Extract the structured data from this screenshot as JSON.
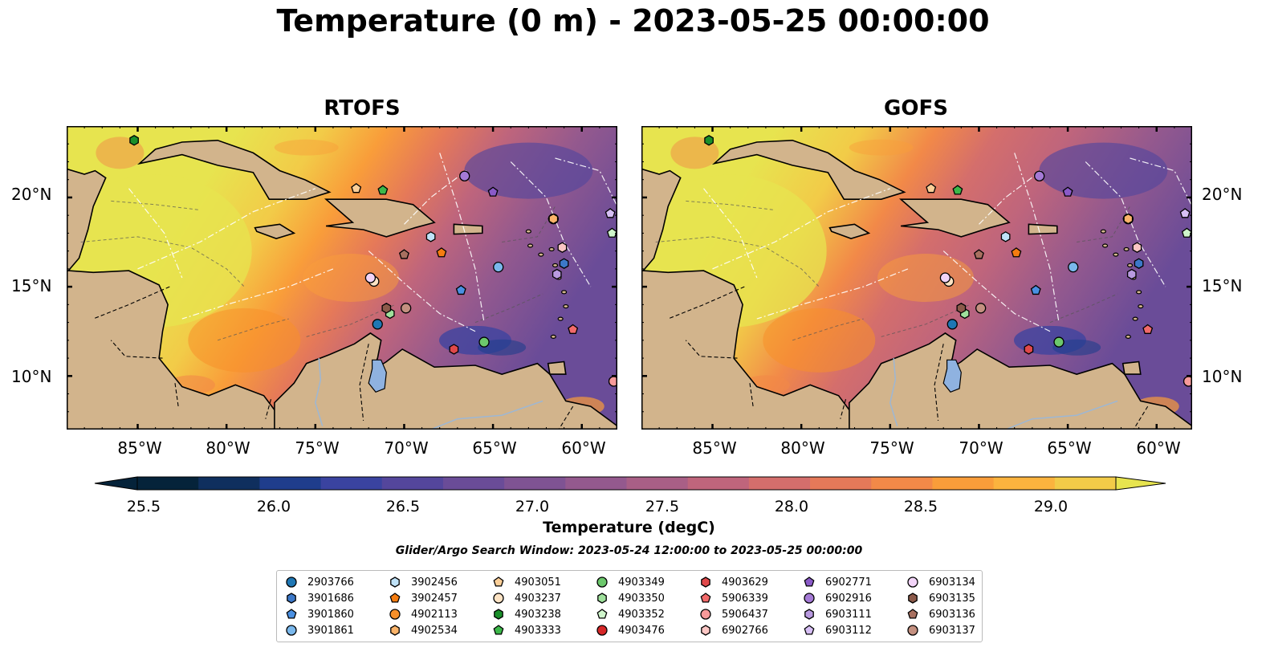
{
  "title": "Temperature (0 m) - 2023-05-25 00:00:00",
  "panels": [
    {
      "title": "RTOFS"
    },
    {
      "title": "GOFS"
    }
  ],
  "map": {
    "lon_range": [
      -89,
      -58
    ],
    "lat_range": [
      7,
      24
    ],
    "lat_labels": [
      "20°N",
      "15°N",
      "10°N"
    ],
    "lat_values": [
      20,
      15,
      10
    ],
    "lon_labels": [
      "85°W",
      "80°W",
      "75°W",
      "70°W",
      "65°W",
      "60°W"
    ],
    "lon_values": [
      -85,
      -80,
      -75,
      -70,
      -65,
      -60
    ],
    "land_color": "#d2b48c",
    "lake_color": "#8fb2e0",
    "colormap": "thermal",
    "isobaths": [
      "-1000",
      "-100"
    ]
  },
  "colorbar": {
    "label": "Temperature (degC)",
    "range": [
      25.25,
      29.25
    ],
    "ticks": [
      "25.5",
      "26.0",
      "26.5",
      "27.0",
      "27.5",
      "28.0",
      "28.5",
      "29.0"
    ],
    "colors": [
      "#05233a",
      "#0f2f5e",
      "#1f3d8c",
      "#3a43a0",
      "#54469c",
      "#6a4c98",
      "#7f5393",
      "#94598e",
      "#a95f86",
      "#bf657c",
      "#d46e6c",
      "#e57959",
      "#f28948",
      "#f99d3a",
      "#fbb33e",
      "#f2cb48",
      "#e7e44f"
    ],
    "extend": "both"
  },
  "search_window": "Glider/Argo Search Window: 2023-05-24 12:00:00 to 2023-05-25 00:00:00",
  "platforms": [
    {
      "id": "2903766",
      "marker": "circle",
      "color": "#1f77b4",
      "lon": -71.5,
      "lat": 12.9
    },
    {
      "id": "3901686",
      "marker": "hexagon",
      "color": "#3c78c8",
      "lon": -61.0,
      "lat": 16.3
    },
    {
      "id": "3901860",
      "marker": "pentagon",
      "color": "#4a90e2",
      "lon": -66.8,
      "lat": 14.8
    },
    {
      "id": "3901861",
      "marker": "circle",
      "color": "#7ab8ec",
      "lon": -64.7,
      "lat": 16.1
    },
    {
      "id": "3902456",
      "marker": "hexagon",
      "color": "#bfe2f8",
      "lon": -68.5,
      "lat": 17.8
    },
    {
      "id": "3902457",
      "marker": "pentagon",
      "color": "#f57c10",
      "lon": -67.9,
      "lat": 16.9
    },
    {
      "id": "4902113",
      "marker": "circle",
      "color": "#f7902a",
      "lon": -61.6,
      "lat": 18.8
    },
    {
      "id": "4902534",
      "marker": "hexagon",
      "color": "#fbb46a",
      "lon": -61.6,
      "lat": 18.8
    },
    {
      "id": "4903051",
      "marker": "pentagon",
      "color": "#fbcf98",
      "lon": -72.7,
      "lat": 20.5
    },
    {
      "id": "4903237",
      "marker": "circle",
      "color": "#fde3c4",
      "lon": -71.7,
      "lat": 15.3
    },
    {
      "id": "4903238",
      "marker": "hexagon",
      "color": "#1a8f2a",
      "lon": -85.2,
      "lat": 23.2
    },
    {
      "id": "4903333",
      "marker": "pentagon",
      "color": "#3cb84a",
      "lon": -71.2,
      "lat": 20.4
    },
    {
      "id": "4903349",
      "marker": "circle",
      "color": "#6cc86c",
      "lon": -65.5,
      "lat": 11.9
    },
    {
      "id": "4903350",
      "marker": "hexagon",
      "color": "#9fe09c",
      "lon": -70.8,
      "lat": 13.5
    },
    {
      "id": "4903352",
      "marker": "pentagon",
      "color": "#cff5cb",
      "lon": -58.3,
      "lat": 18.0
    },
    {
      "id": "4903476",
      "marker": "circle",
      "color": "#d62728",
      "lon": -58.2,
      "lat": 9.7
    },
    {
      "id": "4903629",
      "marker": "hexagon",
      "color": "#e0484a",
      "lon": -67.2,
      "lat": 11.5
    },
    {
      "id": "5906339",
      "marker": "pentagon",
      "color": "#f26a6a",
      "lon": -60.5,
      "lat": 12.6
    },
    {
      "id": "5906437",
      "marker": "circle",
      "color": "#f79a9a",
      "lon": -58.2,
      "lat": 9.7
    },
    {
      "id": "6902766",
      "marker": "hexagon",
      "color": "#fbc6c4",
      "lon": -61.1,
      "lat": 17.2
    },
    {
      "id": "6902771",
      "marker": "pentagon",
      "color": "#8a5ac8",
      "lon": -65.0,
      "lat": 20.3
    },
    {
      "id": "6902916",
      "marker": "circle",
      "color": "#a57ad6",
      "lon": -66.6,
      "lat": 21.2
    },
    {
      "id": "6903111",
      "marker": "hexagon",
      "color": "#b99ae0",
      "lon": -61.4,
      "lat": 15.7
    },
    {
      "id": "6903112",
      "marker": "pentagon",
      "color": "#d7bff5",
      "lon": -58.4,
      "lat": 19.1
    },
    {
      "id": "6903134",
      "marker": "circle",
      "color": "#f2d4f8",
      "lon": -71.9,
      "lat": 15.5
    },
    {
      "id": "6903135",
      "marker": "hexagon",
      "color": "#8c5a4a",
      "lon": -71.0,
      "lat": 13.8
    },
    {
      "id": "6903136",
      "marker": "pentagon",
      "color": "#a87060",
      "lon": -70.0,
      "lat": 16.8
    },
    {
      "id": "6903137",
      "marker": "circle",
      "color": "#c49080",
      "lon": -69.9,
      "lat": 13.8
    }
  ]
}
